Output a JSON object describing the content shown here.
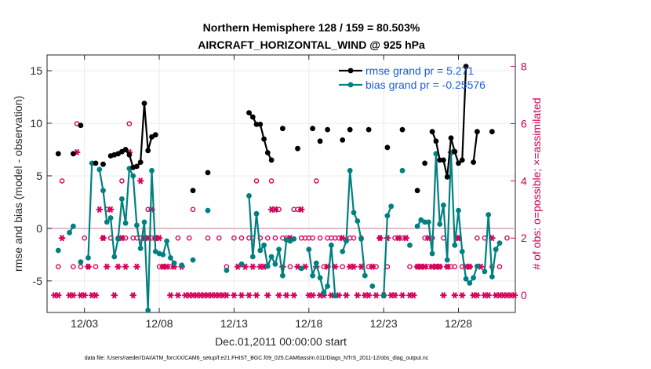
{
  "chart_data": {
    "type": "scatter",
    "title": "Northern Hemisphere 128 / 159 = 80.503%",
    "subtitle": "AIRCRAFT_HORIZONTAL_WIND @ 925 hPa",
    "xlabel": "Dec.01,2011 00:00:00 start",
    "ylabel": "rmse and bias (model - observation)",
    "y2label": "# of obs: o=possible; ×=assimilated",
    "footer": "data file: /Users/raeder/DAI/ATM_forcXX/CAM6_setup/f.e21.FHIST_BGC.f09_025.CAM6assim.011/Diags_NTrS_2011-12/obs_diag_output.nc",
    "xlim": [
      0.5,
      31.8
    ],
    "ylim": [
      -8,
      16.5
    ],
    "y2lim": [
      -0.6,
      8.4
    ],
    "x_ticks": [
      3,
      8,
      13,
      18,
      23,
      28
    ],
    "x_tick_labels": [
      "12/03",
      "12/08",
      "12/13",
      "12/18",
      "12/23",
      "12/28"
    ],
    "y_ticks": [
      -5,
      0,
      5,
      10,
      15
    ],
    "y_tick_labels": [
      "-5",
      "0",
      "5",
      "10",
      "15"
    ],
    "y2_ticks": [
      0,
      2,
      4,
      6,
      8
    ],
    "y2_tick_labels": [
      "0",
      "2",
      "4",
      "6",
      "8"
    ],
    "colors": {
      "rmse": "#000000",
      "bias": "#008080",
      "obs": "#d8005a",
      "zero_line": "#d9a8b8",
      "grid": "#ebebeb"
    },
    "legend_position": "top-right",
    "series": [
      {
        "name": "rmse grand pr = 5.271",
        "axis": "left",
        "style": "line-markers",
        "x": [
          1.25,
          2.25,
          2.75,
          3.75,
          4.25,
          4.75,
          5.0,
          5.25,
          5.5,
          5.75,
          6.0,
          6.25,
          6.5,
          6.75,
          7.0,
          7.25,
          7.5,
          7.75,
          8.0,
          10.25,
          11.25,
          14.0,
          14.25,
          14.5,
          14.75,
          15.0,
          15.25,
          15.5,
          16.25,
          17.25,
          18.25,
          18.75,
          19.25,
          20.25,
          20.75,
          22.0,
          23.25,
          24.25,
          25.25,
          25.75,
          26.25,
          26.5,
          26.75,
          27.0,
          27.25,
          27.5,
          27.75,
          28.0,
          28.25,
          28.5,
          29.0,
          29.25,
          30.25
        ],
        "y": [
          7.1,
          7.1,
          9.8,
          6.2,
          6.1,
          6.9,
          7.0,
          7.1,
          7.3,
          7.5,
          7.0,
          5.8,
          5.9,
          6.3,
          11.9,
          7.4,
          8.7,
          8.9,
          null,
          3.6,
          5.3,
          11.0,
          10.6,
          9.9,
          9.9,
          8.5,
          7.2,
          6.5,
          9.5,
          7.6,
          9.5,
          8.3,
          9.4,
          8.4,
          9.4,
          9.4,
          7.7,
          9.4,
          3.6,
          6.2,
          9.2,
          8.3,
          6.5,
          6.5,
          4.9,
          8.6,
          7.3,
          6.2,
          6.5,
          15.4,
          6.3,
          9.2,
          9.2
        ]
      },
      {
        "name": "bias grand pr = -0.25576",
        "axis": "left",
        "style": "line-markers",
        "x": [
          1.25,
          2.0,
          2.25,
          2.75,
          3.25,
          3.5,
          4.0,
          4.25,
          4.5,
          4.75,
          5.0,
          5.25,
          5.5,
          5.75,
          6.0,
          6.25,
          6.5,
          6.75,
          7.0,
          7.25,
          7.5,
          7.75,
          8.0,
          8.25,
          8.5,
          8.75,
          9.0,
          9.5,
          10.25,
          11.25,
          12.5,
          13.5,
          14.0,
          14.25,
          14.5,
          14.75,
          15.0,
          15.25,
          15.5,
          15.75,
          16.0,
          16.25,
          16.5,
          16.75,
          17.0,
          17.5,
          18.0,
          18.25,
          18.5,
          18.75,
          19.0,
          19.25,
          19.5,
          19.75,
          20.25,
          20.5,
          20.75,
          21.0,
          21.25,
          21.5,
          21.75,
          22.25,
          23.0,
          23.25,
          23.5,
          24.25,
          24.75,
          25.25,
          25.5,
          25.75,
          26.0,
          26.25,
          26.5,
          26.75,
          27.0,
          27.25,
          27.5,
          27.75,
          28.0,
          28.25,
          28.5,
          28.75,
          29.0,
          29.25,
          29.75,
          30.0,
          30.25,
          30.5,
          30.75
        ],
        "y": [
          -2.1,
          -0.4,
          0.2,
          -3.2,
          -2.8,
          6.2,
          5.6,
          3.6,
          0.6,
          1.0,
          -2.7,
          -1.0,
          2.8,
          0.5,
          5.7,
          5.0,
          0.3,
          -1.9,
          0.6,
          -7.8,
          5.5,
          -2.2,
          -2.4,
          -2.5,
          -1.2,
          -2.8,
          -3.3,
          -3.5,
          -3.0,
          1.7,
          -4.0,
          -3.4,
          3.1,
          -2.7,
          1.4,
          -2.1,
          -1.6,
          -3.6,
          -2.7,
          -3.4,
          -2.0,
          -4.5,
          -1.1,
          -1.2,
          -1.0,
          -3.8,
          -2.0,
          -4.5,
          -3.3,
          -4.7,
          -6.1,
          -5.5,
          -1.6,
          -6.4,
          -2.2,
          -1.2,
          5.5,
          1.5,
          0.7,
          -1.0,
          -4.5,
          -5.5,
          -6.4,
          1.2,
          2.1,
          5.5,
          -1.6,
          0.2,
          0.8,
          0.6,
          0.6,
          -2.4,
          7.1,
          0.4,
          2.2,
          -3.0,
          7.2,
          -1.6,
          1.7,
          -2.2,
          -4.8,
          -5.2,
          -4.7,
          -3.6,
          -4.1,
          1.3,
          -4.6,
          -2.0,
          -1.4
        ]
      },
      {
        "name": "# of obs possible",
        "axis": "right",
        "style": "circles",
        "x": [
          1.25,
          1.5,
          2.25,
          2.5,
          2.75,
          3.0,
          3.25,
          3.75,
          4.25,
          4.5,
          4.75,
          5.25,
          5.5,
          5.75,
          6.0,
          6.25,
          6.5,
          6.75,
          7.0,
          7.25,
          7.5,
          7.75,
          8.0,
          8.25,
          8.75,
          9.25,
          10.0,
          10.25,
          11.25,
          12.0,
          12.5,
          13.0,
          13.5,
          14.0,
          14.25,
          14.5,
          14.75,
          15.25,
          15.5,
          15.75,
          16.0,
          16.25,
          16.5,
          16.75,
          17.0,
          17.25,
          17.5,
          17.75,
          18.0,
          18.25,
          18.5,
          18.75,
          19.0,
          19.25,
          19.5,
          19.75,
          20.0,
          20.25,
          20.75,
          21.0,
          21.5,
          22.0,
          22.5,
          22.75,
          23.25,
          23.75,
          24.25,
          24.75,
          25.25,
          25.5,
          25.75,
          26.0,
          26.25,
          26.5,
          26.75,
          27.0,
          27.25,
          27.5,
          27.75,
          28.0,
          28.25,
          28.75,
          29.25,
          29.75,
          30.25,
          30.75,
          31.25
        ],
        "y": [
          1,
          4,
          1,
          6,
          1,
          2,
          1,
          1,
          2,
          3,
          2,
          2,
          4,
          2,
          6,
          2,
          2,
          2,
          2,
          3,
          2,
          2,
          1,
          1,
          1,
          2,
          2,
          3,
          2,
          2,
          1,
          2,
          2,
          2,
          2,
          4,
          2,
          2,
          4,
          2,
          3,
          2,
          2,
          1,
          3,
          3,
          2,
          2,
          2,
          2,
          4,
          2,
          1,
          2,
          2,
          2,
          2,
          1,
          2,
          2,
          2,
          1,
          1,
          2,
          1,
          2,
          2,
          1,
          1,
          1,
          2,
          1,
          2,
          1,
          1,
          2,
          1,
          1,
          1,
          2,
          1,
          1,
          2,
          2,
          1,
          1,
          2
        ]
      },
      {
        "name": "# of obs assimilated",
        "axis": "right",
        "style": "stars",
        "x": [
          1.0,
          1.25,
          1.5,
          2.0,
          2.25,
          2.5,
          2.75,
          3.0,
          3.25,
          3.5,
          3.75,
          4.0,
          4.25,
          4.5,
          4.75,
          5.0,
          5.25,
          5.5,
          5.75,
          6.0,
          6.25,
          6.5,
          6.75,
          7.0,
          7.25,
          7.5,
          7.75,
          8.0,
          8.25,
          8.5,
          8.75,
          9.0,
          9.25,
          9.5,
          9.75,
          10.0,
          10.25,
          10.5,
          10.75,
          11.0,
          11.25,
          11.5,
          11.75,
          12.0,
          12.25,
          12.5,
          13.0,
          13.25,
          13.5,
          13.75,
          14.0,
          14.25,
          14.5,
          14.75,
          15.0,
          15.25,
          15.5,
          15.75,
          16.0,
          16.25,
          16.5,
          16.75,
          17.0,
          17.25,
          17.5,
          17.75,
          18.0,
          18.25,
          18.5,
          18.75,
          19.0,
          19.25,
          19.5,
          19.75,
          20.0,
          20.25,
          20.5,
          20.75,
          21.0,
          21.25,
          21.5,
          21.75,
          22.0,
          22.25,
          22.5,
          22.75,
          23.0,
          23.25,
          23.5,
          23.75,
          24.0,
          24.25,
          24.5,
          24.75,
          25.0,
          25.25,
          25.5,
          25.75,
          26.0,
          26.25,
          26.5,
          26.75,
          27.0,
          27.25,
          27.5,
          27.75,
          28.0,
          28.25,
          28.5,
          28.75,
          29.0,
          29.25,
          29.5,
          29.75,
          30.0,
          30.25,
          30.5,
          30.75,
          31.0,
          31.25,
          31.5,
          31.75
        ],
        "y": [
          0,
          0,
          2,
          0,
          0,
          5,
          0,
          0,
          1,
          0,
          0,
          3,
          2,
          1,
          3,
          0,
          1,
          2,
          1,
          5,
          0,
          1,
          4,
          2,
          2,
          3,
          2,
          2,
          1,
          1,
          0,
          1,
          0,
          1,
          0,
          0,
          0,
          0,
          0,
          0,
          0,
          0,
          0,
          0,
          0,
          0,
          0,
          1,
          0,
          1,
          0,
          1,
          0,
          1,
          1,
          0,
          3,
          3,
          0,
          1,
          0,
          2,
          0,
          1,
          3,
          1,
          0,
          0,
          1,
          0,
          0,
          1,
          0,
          1,
          0,
          2,
          0,
          1,
          1,
          0,
          1,
          0,
          0,
          1,
          0,
          2,
          0,
          2,
          0,
          0,
          2,
          0,
          2,
          0,
          0,
          1,
          1,
          1,
          2,
          1,
          1,
          1,
          0,
          1,
          5,
          0,
          2,
          0,
          1,
          1,
          0,
          0,
          1,
          0,
          0,
          2,
          0,
          0,
          0,
          0,
          0,
          0
        ]
      }
    ]
  }
}
